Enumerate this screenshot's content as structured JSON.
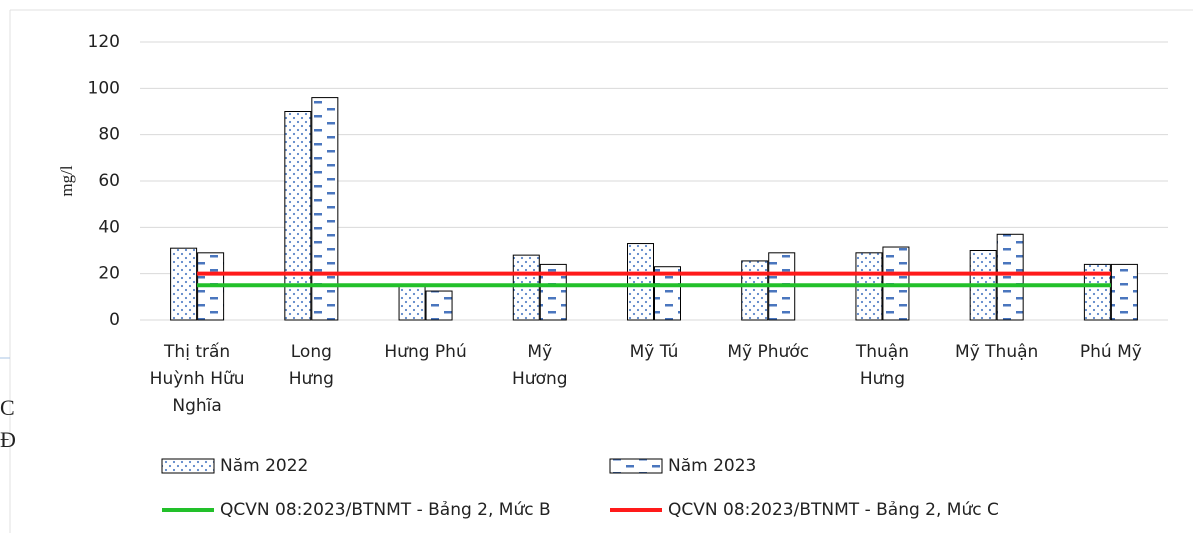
{
  "chart_data": {
    "type": "bar",
    "ylabel": "mg/l",
    "categories": [
      "Thị trấn\nHuỳnh Hữu\nNghĩa",
      "Long\nHưng",
      "Hưng Phú",
      "Mỹ\nHương",
      "Mỹ Tú",
      "Mỹ Phước",
      "Thuận\nHưng",
      "Mỹ Thuận",
      "Phú Mỹ"
    ],
    "series": [
      {
        "name": "Năm 2022",
        "color": "#5b86c8",
        "pattern": "dots",
        "values": [
          31,
          90,
          15,
          28,
          33,
          25.5,
          29,
          30,
          24
        ]
      },
      {
        "name": "Năm 2023",
        "color": "#4a76be",
        "pattern": "dashes",
        "values": [
          29,
          96,
          12.5,
          24,
          23,
          29,
          31.5,
          37,
          24
        ]
      },
      {
        "name": "QCVN 08:2023/BTNMT - Bảng 2, Mức B",
        "type": "line",
        "color": "#22c02a",
        "values": [
          15,
          15,
          15,
          15,
          15,
          15,
          15,
          15,
          15
        ]
      },
      {
        "name": "QCVN 08:2023/BTNMT - Bảng 2, Mức C",
        "type": "line",
        "color": "#ff1a1a",
        "values": [
          20,
          20,
          20,
          20,
          20,
          20,
          20,
          20,
          20
        ]
      }
    ],
    "ylim": [
      0,
      120
    ],
    "yticks": [
      0,
      20,
      40,
      60,
      80,
      100,
      120
    ],
    "grid": true,
    "annotations": [
      "C",
      "Đ"
    ]
  }
}
